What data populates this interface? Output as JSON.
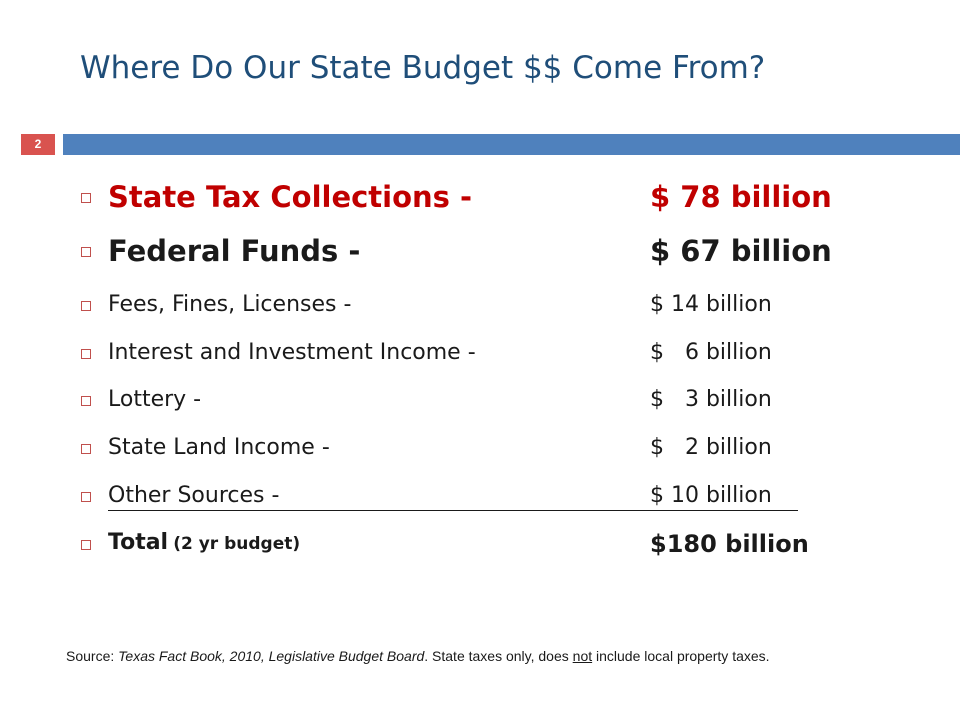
{
  "slide": {
    "title": "Where Do Our State Budget $$ Come From?",
    "page_number": "2"
  },
  "items": [
    {
      "label": "State Tax Collections -",
      "amount": "$ 78 billion"
    },
    {
      "label": "Federal Funds -",
      "amount": "$ 67 billion"
    },
    {
      "label": "Fees, Fines, Licenses -",
      "amount": "$ 14 billion"
    },
    {
      "label": "Interest and Investment Income -",
      "amount": "$   6 billion"
    },
    {
      "label": "Lottery -",
      "amount": "$   3 billion"
    },
    {
      "label": "State Land Income -",
      "amount": "$   2 billion"
    },
    {
      "label": "Other Sources -",
      "amount": "$ 10 billion"
    }
  ],
  "total": {
    "label": "Total",
    "note": "(2 yr budget)",
    "amount": "$180 billion"
  },
  "source": {
    "prefix": "Source: ",
    "book": "Texas Fact Book, 2010, Legislative Budget Board",
    "middle": ". State taxes only,  does ",
    "emphasis": "not",
    "suffix": " include local property taxes."
  },
  "colors": {
    "title": "#1f4e79",
    "accent_red": "#c00000",
    "bar_blue": "#4f81bd",
    "badge_red": "#d9534f"
  }
}
